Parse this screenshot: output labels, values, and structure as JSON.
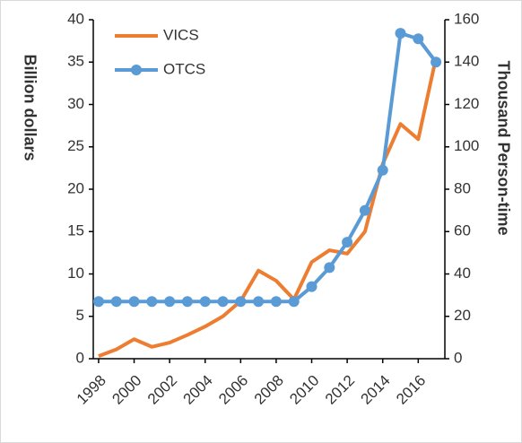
{
  "chart_data": {
    "type": "line",
    "y_label": "Billion dollars",
    "y2_label": "Thousand Person-time",
    "x": [
      1998,
      1999,
      2000,
      2001,
      2002,
      2003,
      2004,
      2005,
      2006,
      2007,
      2008,
      2009,
      2010,
      2011,
      2012,
      2013,
      2014,
      2015,
      2016,
      2017
    ],
    "series": [
      {
        "name": "VICS",
        "color": "#ed7d31",
        "axis": "y",
        "marker": false,
        "values": [
          0.3,
          1.1,
          2.3,
          1.4,
          1.9,
          2.8,
          3.8,
          5.0,
          6.8,
          10.4,
          9.2,
          7.0,
          11.4,
          12.8,
          12.4,
          15.0,
          23.0,
          27.7,
          25.9,
          35.5
        ]
      },
      {
        "name": "OTCS",
        "color": "#5b9bd5",
        "axis": "y2",
        "marker": true,
        "values": [
          27,
          27,
          27,
          27,
          27,
          27,
          27,
          27,
          27,
          27,
          27,
          27,
          34,
          43,
          55,
          70,
          89,
          153.6,
          151,
          140
        ]
      }
    ],
    "xlim": [
      1997.7,
      2017.5
    ],
    "xticks": [
      1998,
      2000,
      2002,
      2004,
      2006,
      2008,
      2010,
      2012,
      2014,
      2016
    ],
    "ylim": [
      0,
      40
    ],
    "yticks": [
      0,
      5,
      10,
      15,
      20,
      25,
      30,
      35,
      40
    ],
    "y2lim": [
      0,
      160
    ],
    "y2ticks": [
      0,
      20,
      40,
      60,
      80,
      100,
      120,
      140,
      160
    ],
    "grid": false,
    "legend": "upper-left"
  }
}
